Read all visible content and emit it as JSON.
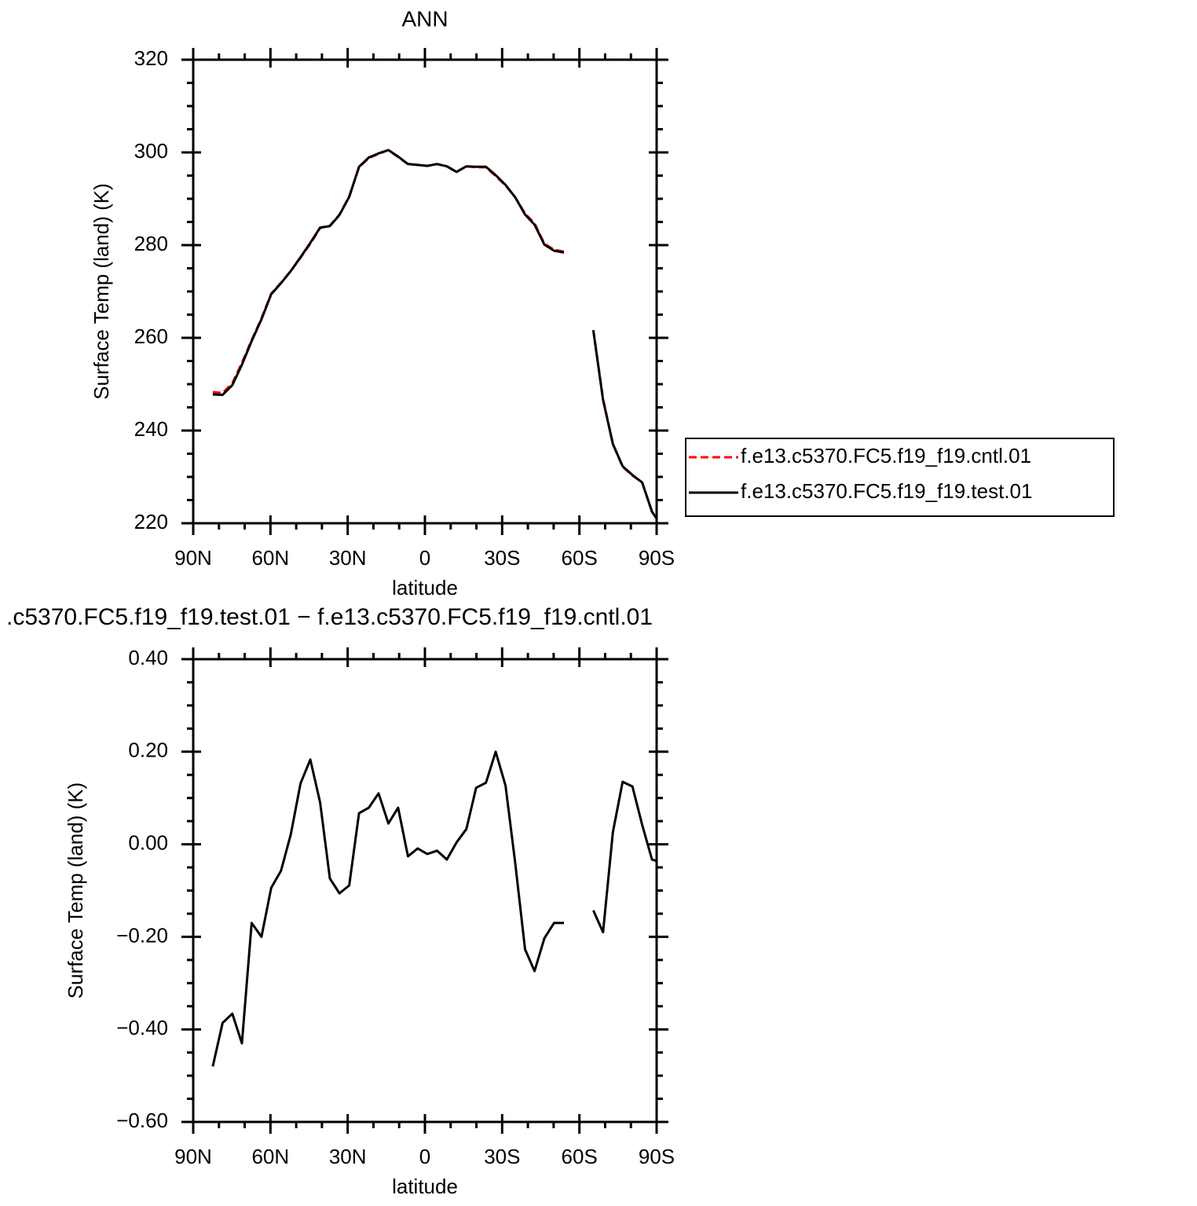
{
  "chart_data": [
    {
      "type": "line",
      "title": "ANN",
      "xlabel": "latitude",
      "ylabel": "Surface Temp (land) (K)",
      "x": [
        82.4,
        78.6,
        74.8,
        71.1,
        67.3,
        63.5,
        59.7,
        55.9,
        52.1,
        48.3,
        44.5,
        40.7,
        36.9,
        33.2,
        29.4,
        25.6,
        21.8,
        18.0,
        14.2,
        10.4,
        6.6,
        2.8,
        -0.9,
        -4.7,
        -8.5,
        -12.3,
        -16.1,
        -19.9,
        -23.7,
        -27.5,
        -31.3,
        -35.1,
        -38.9,
        -42.6,
        -46.4,
        -50.2,
        -54.0,
        -59.7,
        -65.4,
        -69.2,
        -73.0,
        -76.8,
        -80.6,
        -84.4,
        -88.2,
        -90
      ],
      "xlim": [
        90,
        -90
      ],
      "xticks": [
        {
          "value": 90,
          "label": "90N"
        },
        {
          "value": 60,
          "label": "60N"
        },
        {
          "value": 30,
          "label": "30N"
        },
        0,
        {
          "value": -30,
          "label": "30S"
        },
        {
          "value": -60,
          "label": "60S"
        },
        {
          "value": -90,
          "label": "90S"
        }
      ],
      "ylim": [
        220,
        320
      ],
      "yticks": [
        220,
        240,
        260,
        280,
        300,
        320
      ],
      "legend": "right",
      "series": [
        {
          "name": "f.e13.c5370.FC5.f19_f19.cntl.01",
          "color": "#ff0000",
          "dash": true,
          "values": [
            248.3,
            248.1,
            250.2,
            254.6,
            259.5,
            264.2,
            269.5,
            271.9,
            274.4,
            277.3,
            280.3,
            283.7,
            284.2,
            286.6,
            290.5,
            296.8,
            298.8,
            299.7,
            300.5,
            299.0,
            297.5,
            297.3,
            297.1,
            297.5,
            297.0,
            295.8,
            297.0,
            296.8,
            296.8,
            294.9,
            292.9,
            290.3,
            286.8,
            284.7,
            280.3,
            279.0,
            278.6,
            null,
            261.7,
            246.8,
            237.1,
            232.2,
            230.3,
            228.8,
            222.5,
            221.0
          ]
        },
        {
          "name": "f.e13.c5370.FC5.f19_f19.test.01",
          "color": "#000000",
          "values": [
            247.8,
            247.7,
            249.8,
            254.2,
            259.3,
            264.0,
            269.4,
            271.8,
            274.4,
            277.4,
            280.5,
            283.8,
            284.1,
            286.5,
            290.4,
            296.9,
            298.9,
            299.8,
            300.5,
            299.1,
            297.5,
            297.3,
            297.1,
            297.5,
            297.0,
            295.8,
            297.0,
            296.9,
            296.9,
            295.1,
            293.0,
            290.3,
            286.6,
            284.4,
            280.1,
            278.8,
            278.4,
            null,
            261.6,
            246.6,
            237.1,
            232.3,
            230.4,
            228.8,
            222.5,
            221.0
          ]
        }
      ]
    },
    {
      "type": "line",
      "title": ".c5370.FC5.f19_f19.test.01 − f.e13.c5370.FC5.f19_f19.cntl.01",
      "xlabel": "latitude",
      "ylabel": "Surface Temp (land) (K)",
      "x": [
        82.4,
        78.6,
        74.8,
        71.1,
        67.3,
        63.5,
        59.7,
        55.9,
        52.1,
        48.3,
        44.5,
        40.7,
        36.9,
        33.2,
        29.4,
        25.6,
        21.8,
        18.0,
        14.2,
        10.4,
        6.6,
        2.8,
        -0.9,
        -4.7,
        -8.5,
        -12.3,
        -16.1,
        -19.9,
        -23.7,
        -27.5,
        -31.3,
        -35.1,
        -38.9,
        -42.6,
        -46.4,
        -50.2,
        -54.0,
        -59.7,
        -65.4,
        -69.2,
        -73.0,
        -76.8,
        -80.6,
        -84.4,
        -88.2,
        -90
      ],
      "xlim": [
        90,
        -90
      ],
      "xticks": [
        {
          "value": 90,
          "label": "90N"
        },
        {
          "value": 60,
          "label": "60N"
        },
        {
          "value": 30,
          "label": "30N"
        },
        0,
        {
          "value": -30,
          "label": "30S"
        },
        {
          "value": -60,
          "label": "60S"
        },
        {
          "value": -90,
          "label": "90S"
        }
      ],
      "ylim": [
        -0.6,
        0.4
      ],
      "yticks": [
        {
          "value": -0.6,
          "label": "−0.60"
        },
        {
          "value": -0.4,
          "label": "−0.40"
        },
        {
          "value": -0.2,
          "label": "−0.20"
        },
        {
          "value": 0,
          "label": "0.00"
        },
        {
          "value": 0.2,
          "label": "0.20"
        },
        {
          "value": 0.4,
          "label": "0.40"
        }
      ],
      "series": [
        {
          "color": "#000000",
          "values": [
            -0.48,
            -0.386,
            -0.366,
            -0.43,
            -0.17,
            -0.2,
            -0.094,
            -0.057,
            0.021,
            0.132,
            0.183,
            0.09,
            -0.074,
            -0.106,
            -0.089,
            0.067,
            0.079,
            0.11,
            0.045,
            0.079,
            -0.026,
            -0.009,
            -0.021,
            -0.014,
            -0.033,
            0.004,
            0.033,
            0.122,
            0.133,
            0.2,
            0.127,
            -0.041,
            -0.227,
            -0.274,
            -0.203,
            -0.17,
            -0.17,
            null,
            -0.143,
            -0.19,
            0.026,
            0.135,
            0.125,
            0.042,
            -0.033,
            -0.036
          ]
        }
      ]
    }
  ]
}
